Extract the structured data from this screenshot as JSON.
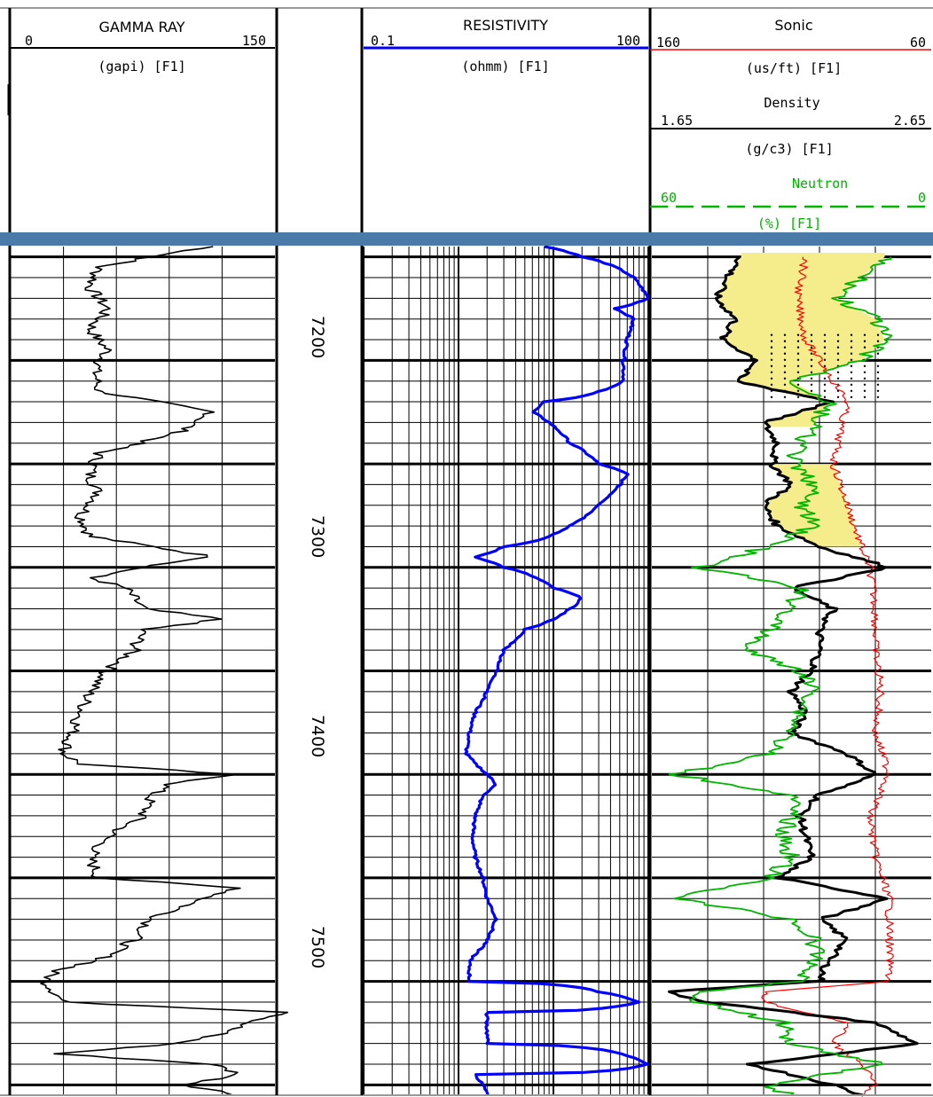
{
  "header": {
    "gamma": {
      "title": "GAMMA RAY",
      "min": "0",
      "max": "150",
      "unit": "(gapi) [F1]"
    },
    "resistivity": {
      "title": "RESISTIVITY",
      "min": "0.1",
      "max": "100",
      "unit": "(ohmm) [F1]"
    },
    "sonic": {
      "title": "Sonic",
      "min": "160",
      "max": "60",
      "unit": "(us/ft) [F1]"
    },
    "density": {
      "title": "Density",
      "min": "1.65",
      "max": "2.65",
      "unit": "(g/c3) [F1]"
    },
    "neutron": {
      "title": "Neutron",
      "min": "60",
      "max": "0",
      "unit": "(%) [F1]"
    }
  },
  "colors": {
    "gamma": "#000000",
    "resistivity": "#0000ff",
    "sonic": "#ff0000",
    "density": "#000000",
    "neutron": "#00b400",
    "fill": "#f5ec8c",
    "divider": "#4a7aa7"
  },
  "chart_data": {
    "type": "line",
    "y_axis": "depth (ft)",
    "ylim": [
      7145,
      7555
    ],
    "depth_labels": [
      "7200",
      "7300",
      "7400",
      "7500"
    ],
    "tracks": [
      {
        "name": "GAMMA RAY",
        "xlim": [
          0,
          150
        ],
        "scale": "linear",
        "depth": [
          7145,
          7150,
          7155,
          7165,
          7175,
          7185,
          7195,
          7205,
          7215,
          7225,
          7235,
          7245,
          7255,
          7265,
          7275,
          7285,
          7292,
          7295,
          7300,
          7305,
          7310,
          7315,
          7320,
          7325,
          7330,
          7340,
          7350,
          7360,
          7370,
          7380,
          7390,
          7395,
          7400,
          7405,
          7410,
          7420,
          7430,
          7440,
          7450,
          7455,
          7460,
          7465,
          7470,
          7480,
          7490,
          7495,
          7500,
          7505,
          7510,
          7515,
          7520,
          7525,
          7530,
          7535,
          7540,
          7545,
          7550,
          7555
        ],
        "values": [
          115,
          80,
          50,
          45,
          55,
          45,
          55,
          48,
          50,
          115,
          95,
          50,
          45,
          50,
          40,
          45,
          95,
          115,
          75,
          45,
          65,
          70,
          75,
          120,
          75,
          70,
          55,
          45,
          40,
          35,
          30,
          40,
          125,
          90,
          80,
          75,
          55,
          45,
          50,
          130,
          110,
          95,
          80,
          70,
          50,
          25,
          20,
          25,
          30,
          160,
          135,
          120,
          95,
          25,
          115,
          130,
          100,
          130
        ]
      },
      {
        "name": "RESISTIVITY",
        "xlim": [
          0.1,
          100
        ],
        "scale": "log",
        "depth": [
          7145,
          7150,
          7160,
          7170,
          7175,
          7180,
          7190,
          7200,
          7210,
          7215,
          7220,
          7225,
          7230,
          7240,
          7250,
          7255,
          7260,
          7270,
          7280,
          7290,
          7295,
          7300,
          7310,
          7315,
          7320,
          7330,
          7340,
          7350,
          7360,
          7370,
          7380,
          7390,
          7395,
          7400,
          7405,
          7410,
          7420,
          7430,
          7440,
          7450,
          7460,
          7470,
          7480,
          7490,
          7500,
          7505,
          7510,
          7515,
          7520,
          7530,
          7540,
          7545,
          7550,
          7555
        ],
        "values": [
          8,
          20,
          70,
          100,
          45,
          70,
          60,
          55,
          55,
          30,
          8,
          6,
          9,
          15,
          30,
          60,
          50,
          30,
          15,
          3,
          1.5,
          3,
          10,
          20,
          15,
          5,
          3,
          2.5,
          2,
          1.5,
          1.3,
          1.2,
          1.5,
          2,
          2.5,
          1.8,
          1.5,
          1.4,
          1.5,
          1.8,
          2,
          2.5,
          2,
          1.3,
          1.3,
          30,
          80,
          2,
          2,
          2,
          100,
          1.5,
          1.8,
          2
        ]
      },
      {
        "name": "Sonic",
        "xlim": [
          160,
          60
        ],
        "scale": "linear",
        "depth": [
          7150,
          7170,
          7190,
          7210,
          7220,
          7230,
          7250,
          7270,
          7290,
          7300,
          7320,
          7340,
          7360,
          7380,
          7400,
          7420,
          7440,
          7460,
          7480,
          7500,
          7505,
          7510,
          7520,
          7530,
          7540,
          7550,
          7555
        ],
        "values": [
          105,
          108,
          105,
          95,
          90,
          92,
          95,
          90,
          85,
          82,
          80,
          80,
          78,
          80,
          75,
          82,
          80,
          75,
          75,
          75,
          120,
          120,
          90,
          95,
          85,
          80,
          85
        ]
      },
      {
        "name": "Density",
        "xlim": [
          1.65,
          2.65
        ],
        "scale": "linear",
        "depth": [
          7150,
          7160,
          7170,
          7180,
          7190,
          7200,
          7210,
          7220,
          7230,
          7240,
          7250,
          7260,
          7270,
          7280,
          7290,
          7300,
          7310,
          7320,
          7330,
          7340,
          7350,
          7360,
          7370,
          7380,
          7390,
          7400,
          7410,
          7420,
          7430,
          7440,
          7450,
          7460,
          7470,
          7480,
          7490,
          7500,
          7505,
          7510,
          7520,
          7530,
          7540,
          7550,
          7555
        ],
        "values": [
          1.97,
          1.92,
          1.88,
          1.95,
          1.9,
          2.03,
          1.95,
          2.3,
          2.05,
          2.1,
          2.08,
          2.15,
          2.05,
          2.1,
          2.25,
          2.5,
          2.15,
          2.3,
          2.25,
          2.25,
          2.22,
          2.15,
          2.2,
          2.15,
          2.35,
          2.45,
          2.25,
          2.18,
          2.2,
          2.22,
          2.1,
          2.5,
          2.25,
          2.35,
          2.28,
          2.25,
          1.7,
          1.85,
          2.45,
          2.6,
          2.0,
          2.3,
          2.4
        ]
      },
      {
        "name": "Neutron",
        "xlim": [
          60,
          0
        ],
        "scale": "linear",
        "depth": [
          7150,
          7160,
          7170,
          7180,
          7190,
          7200,
          7210,
          7220,
          7230,
          7240,
          7250,
          7260,
          7270,
          7280,
          7290,
          7300,
          7310,
          7320,
          7330,
          7340,
          7350,
          7360,
          7370,
          7380,
          7390,
          7400,
          7410,
          7420,
          7430,
          7440,
          7450,
          7460,
          7470,
          7480,
          7490,
          7500,
          7505,
          7510,
          7520,
          7530,
          7540,
          7550,
          7555
        ],
        "values": [
          10,
          15,
          20,
          12,
          10,
          15,
          30,
          22,
          25,
          28,
          30,
          25,
          28,
          25,
          35,
          50,
          28,
          30,
          35,
          40,
          28,
          25,
          28,
          30,
          35,
          55,
          30,
          30,
          32,
          30,
          35,
          55,
          30,
          25,
          25,
          28,
          50,
          50,
          32,
          30,
          10,
          35,
          30
        ]
      }
    ]
  }
}
